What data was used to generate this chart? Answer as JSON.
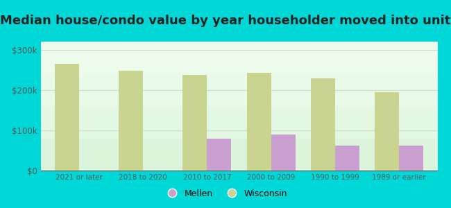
{
  "title": "Median house/condo value by year householder moved into unit",
  "categories": [
    "2021 or later",
    "2018 to 2020",
    "2010 to 2017",
    "2000 to 2009",
    "1990 to 1999",
    "1989 or earlier"
  ],
  "mellen_values": [
    0,
    0,
    80000,
    90000,
    62000,
    62000
  ],
  "wisconsin_values": [
    265000,
    248000,
    238000,
    242000,
    228000,
    195000
  ],
  "mellen_color": "#c9a0d0",
  "wisconsin_color": "#c8d490",
  "plot_bg_color": "#eafaea",
  "outer_background": "#00d8d8",
  "ylim": [
    0,
    320000
  ],
  "yticks": [
    0,
    100000,
    200000,
    300000
  ],
  "ytick_labels": [
    "$0",
    "$100k",
    "$200k",
    "$300k"
  ],
  "legend_mellen": "Mellen",
  "legend_wisconsin": "Wisconsin",
  "title_fontsize": 13,
  "bar_width": 0.38,
  "grid_color": "#ccddcc",
  "tick_color": "#555555"
}
